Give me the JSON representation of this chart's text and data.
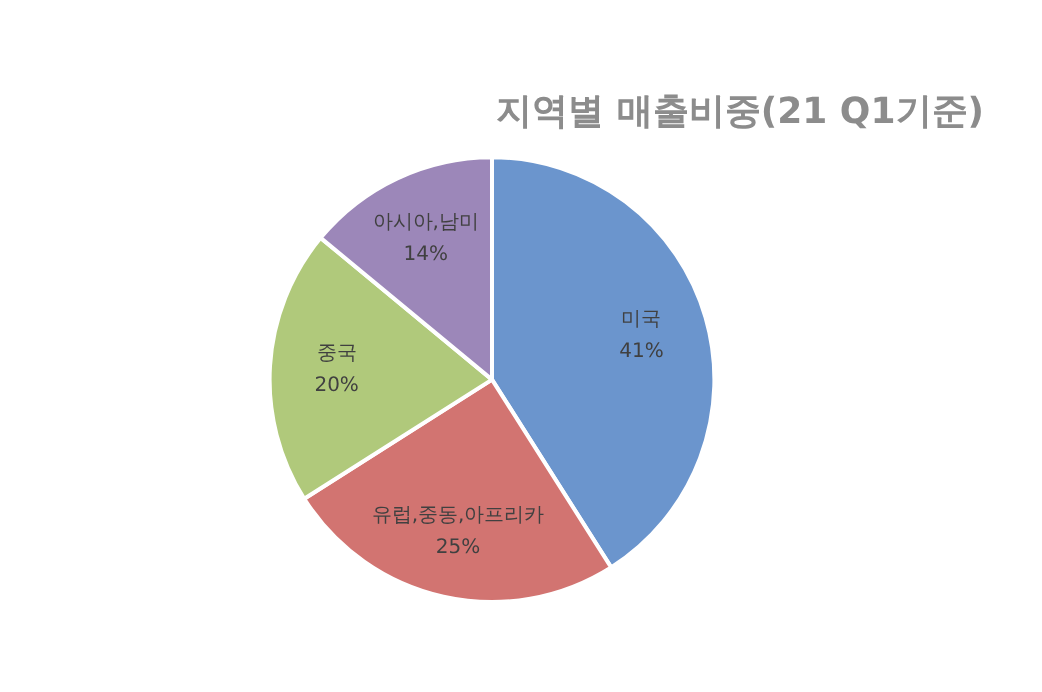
{
  "chart_data": {
    "type": "pie",
    "title": "지역별 매출비중(21 Q1기준)",
    "categories": [
      "미국",
      "유럽,중동,아프리카",
      "중국",
      "아시아,남미"
    ],
    "values": [
      41,
      25,
      20,
      14
    ],
    "colors": [
      "#6b95cd",
      "#d27471",
      "#b0c97b",
      "#9c87b9"
    ],
    "value_labels": [
      "41%",
      "25%",
      "20%",
      "14%"
    ],
    "legend": false
  }
}
